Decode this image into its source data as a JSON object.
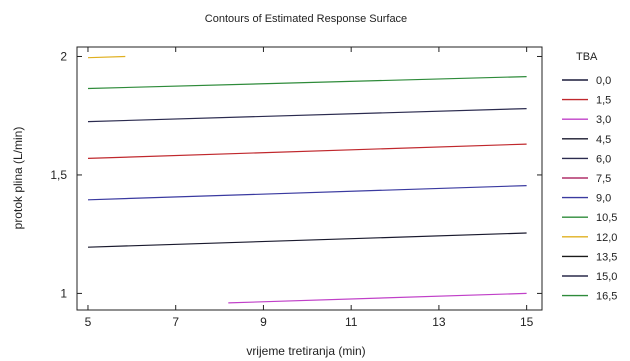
{
  "chart_data": {
    "type": "line",
    "title": "Contours of Estimated Response Surface",
    "xlabel": "vrijeme tretiranja (min)",
    "ylabel": "protok plina (L/min)",
    "xlim": [
      4.75,
      15.35
    ],
    "ylim": [
      0.93,
      2.04
    ],
    "x_ticks": [
      5,
      7,
      9,
      11,
      13,
      15
    ],
    "x_tick_labels": [
      "5",
      "7",
      "9",
      "11",
      "13",
      "15"
    ],
    "y_ticks": [
      1,
      1.5,
      2
    ],
    "y_tick_labels": [
      "1",
      "1,5",
      "2"
    ],
    "grid": false,
    "legend_position": "right",
    "legend_title": "TBA",
    "legend": [
      {
        "label": "0,0",
        "color": "#1b1b3a"
      },
      {
        "label": "1,5",
        "color": "#c0282d"
      },
      {
        "label": "3,0",
        "color": "#c040c8"
      },
      {
        "label": "4,5",
        "color": "#1a1a2e"
      },
      {
        "label": "6,0",
        "color": "#2b2b4f"
      },
      {
        "label": "7,5",
        "color": "#b0306a"
      },
      {
        "label": "9,0",
        "color": "#3a3aa0"
      },
      {
        "label": "10,5",
        "color": "#2e8b3a"
      },
      {
        "label": "12,0",
        "color": "#e0b020"
      },
      {
        "label": "13,5",
        "color": "#1a1a1a"
      },
      {
        "label": "15,0",
        "color": "#2a2a4a"
      },
      {
        "label": "16,5",
        "color": "#2e8b3a"
      }
    ],
    "series": [
      {
        "color": "#c040c8",
        "x": [
          8.2,
          15.0
        ],
        "y": [
          0.96,
          1.0
        ]
      },
      {
        "color": "#1a1a2e",
        "x": [
          5.0,
          15.0
        ],
        "y": [
          1.195,
          1.255
        ]
      },
      {
        "color": "#3a3aa0",
        "x": [
          5.0,
          15.0
        ],
        "y": [
          1.395,
          1.455
        ]
      },
      {
        "color": "#c0282d",
        "x": [
          5.0,
          15.0
        ],
        "y": [
          1.57,
          1.63
        ]
      },
      {
        "color": "#2b2b4f",
        "x": [
          5.0,
          15.0
        ],
        "y": [
          1.725,
          1.78
        ]
      },
      {
        "color": "#2e8b3a",
        "x": [
          5.0,
          15.0
        ],
        "y": [
          1.865,
          1.915
        ]
      },
      {
        "color": "#e0b020",
        "x": [
          5.0,
          5.85
        ],
        "y": [
          1.995,
          2.0
        ]
      }
    ]
  }
}
